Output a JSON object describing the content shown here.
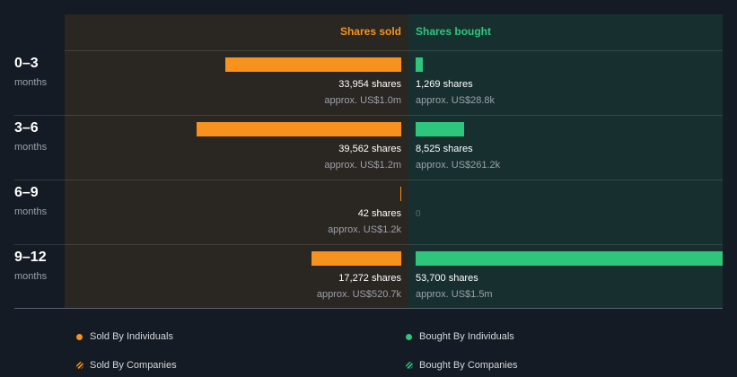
{
  "chart_data": {
    "type": "bar",
    "columns": [
      "Shares sold",
      "Shares bought"
    ],
    "rows": [
      {
        "label": "0–3",
        "sub": "months",
        "sold": {
          "shares": 33954,
          "shares_text": "33,954 shares",
          "value_text": "approx. US$1.0m"
        },
        "bought": {
          "shares": 1269,
          "shares_text": "1,269 shares",
          "value_text": "approx. US$28.8k"
        }
      },
      {
        "label": "3–6",
        "sub": "months",
        "sold": {
          "shares": 39562,
          "shares_text": "39,562 shares",
          "value_text": "approx. US$1.2m"
        },
        "bought": {
          "shares": 8525,
          "shares_text": "8,525 shares",
          "value_text": "approx. US$261.2k"
        }
      },
      {
        "label": "6–9",
        "sub": "months",
        "sold": {
          "shares": 42,
          "shares_text": "42 shares",
          "value_text": "approx. US$1.2k"
        },
        "bought": {
          "shares": 0,
          "shares_text": "",
          "value_text": "",
          "zero_text": "0"
        }
      },
      {
        "label": "9–12",
        "sub": "months",
        "sold": {
          "shares": 17272,
          "shares_text": "17,272 shares",
          "value_text": "approx. US$520.7k"
        },
        "bought": {
          "shares": 53700,
          "shares_text": "53,700 shares",
          "value_text": "approx. US$1.5m"
        }
      }
    ],
    "legend": [
      {
        "label": "Sold By Individuals",
        "color": "#f7921e",
        "style": "solid"
      },
      {
        "label": "Bought By Individuals",
        "color": "#2ec67d",
        "style": "solid"
      },
      {
        "label": "Sold By Companies",
        "color": "#f7921e",
        "style": "hatched"
      },
      {
        "label": "Bought By Companies",
        "color": "#2ec67d",
        "style": "hatched"
      }
    ],
    "colors": {
      "sold": "#f7921e",
      "bought": "#2ec67d"
    }
  }
}
